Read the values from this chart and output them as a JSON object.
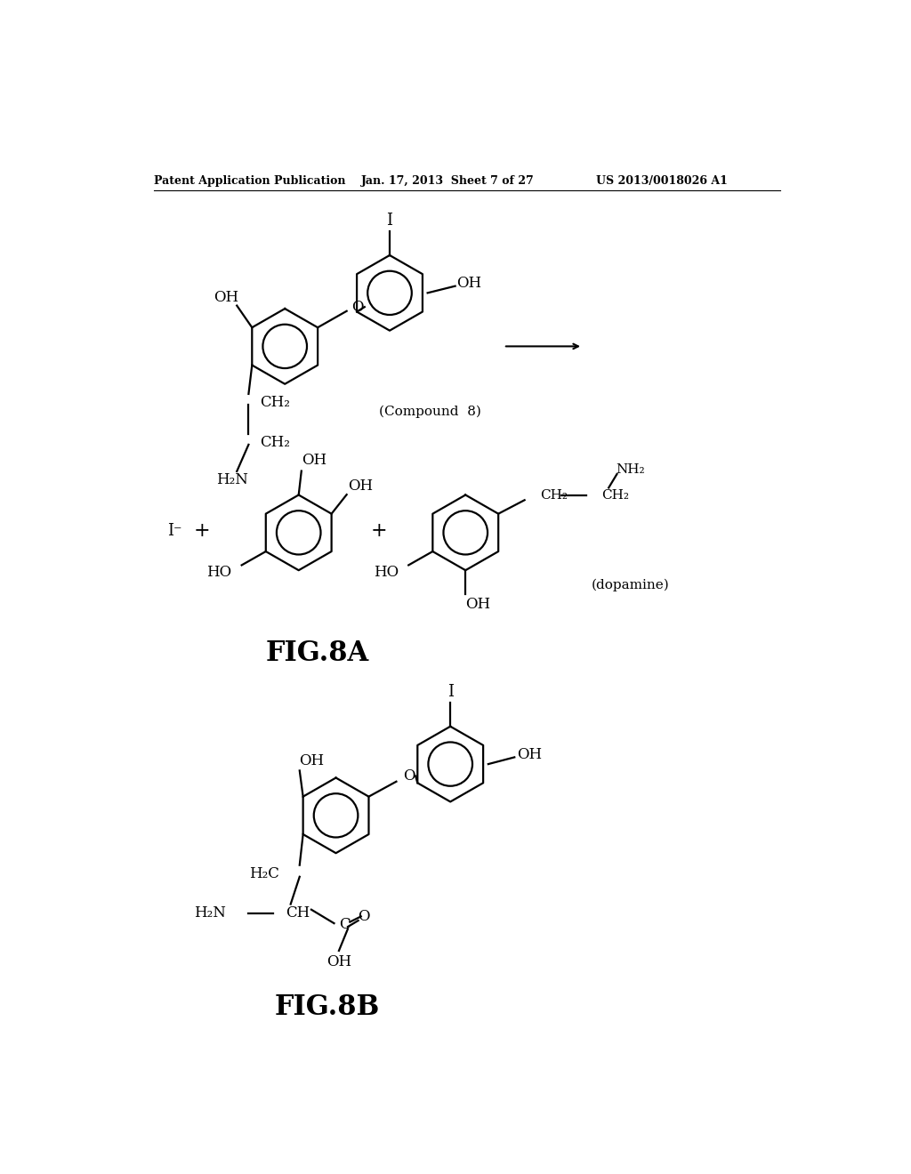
{
  "bg_color": "#ffffff",
  "header_left": "Patent Application Publication",
  "header_center": "Jan. 17, 2013  Sheet 7 of 27",
  "header_right": "US 2013/0018026 A1",
  "fig8a_label": "FIG.8A",
  "fig8b_label": "FIG.8B",
  "compound8_label": "(Compound  8)",
  "dopamine_label": "(dopamine)"
}
